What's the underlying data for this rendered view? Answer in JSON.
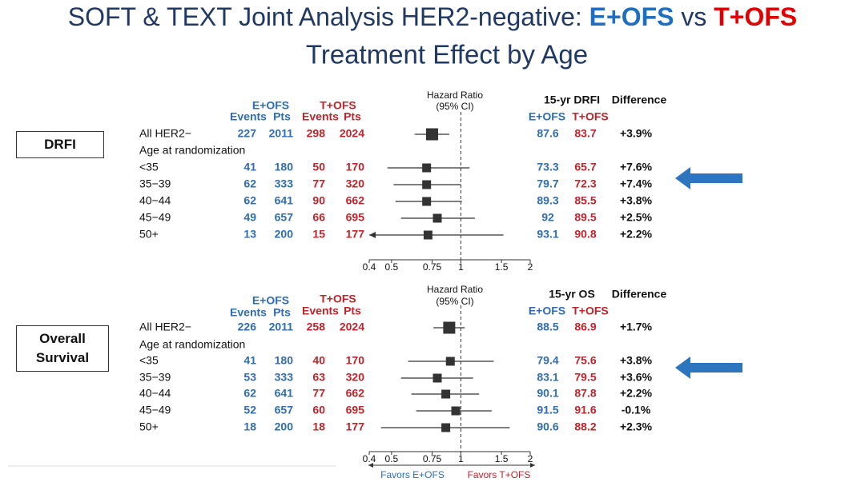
{
  "title_parts": [
    "SOFT & TEXT Joint Analysis HER2-negative: ",
    "E+OFS",
    " vs ",
    "T+OFS"
  ],
  "subtitle": "Treatment Effect by Age",
  "chart_data": [
    {
      "type": "forest",
      "panel_label": "DRFI",
      "groups": [
        "E+OFS",
        "T+OFS"
      ],
      "col_headers": [
        "Events",
        "Pts",
        "Events",
        "Pts"
      ],
      "hr_header": [
        "Hazard Ratio",
        "(95% CI)"
      ],
      "outcome_header": "15-yr DRFI",
      "diff_header": "Difference",
      "outcome_cols": [
        "E+OFS",
        "T+OFS"
      ],
      "subheading": "Age at randomization",
      "rows": [
        {
          "label": "All HER2−",
          "e_events": 227,
          "e_pts": 2011,
          "t_events": 298,
          "t_pts": 2024,
          "hr": 0.75,
          "ci_low": 0.63,
          "ci_high": 0.89,
          "e_rate": 87.6,
          "t_rate": 83.7,
          "difference": "+3.9%"
        },
        {
          "label": "<35",
          "e_events": 41,
          "e_pts": 180,
          "t_events": 50,
          "t_pts": 170,
          "hr": 0.71,
          "ci_low": 0.48,
          "ci_high": 1.09,
          "e_rate": 73.3,
          "t_rate": 65.7,
          "difference": "+7.6%"
        },
        {
          "label": "35−39",
          "e_events": 62,
          "e_pts": 333,
          "t_events": 77,
          "t_pts": 320,
          "hr": 0.71,
          "ci_low": 0.51,
          "ci_high": 1.0,
          "e_rate": 79.7,
          "t_rate": 72.3,
          "difference": "+7.4%"
        },
        {
          "label": "40−44",
          "e_events": 62,
          "e_pts": 641,
          "t_events": 90,
          "t_pts": 662,
          "hr": 0.71,
          "ci_low": 0.52,
          "ci_high": 1.01,
          "e_rate": 89.3,
          "t_rate": 85.5,
          "difference": "+3.8%"
        },
        {
          "label": "45−49",
          "e_events": 49,
          "e_pts": 657,
          "t_events": 66,
          "t_pts": 695,
          "hr": 0.79,
          "ci_low": 0.55,
          "ci_high": 1.15,
          "e_rate": 92.0,
          "t_rate": 89.5,
          "difference": "+2.5%"
        },
        {
          "label": "50+",
          "e_events": 13,
          "e_pts": 200,
          "t_events": 15,
          "t_pts": 177,
          "hr": 0.72,
          "ci_low": 0.38,
          "ci_high": 1.53,
          "e_rate": 93.1,
          "t_rate": 90.8,
          "difference": "+2.2%"
        }
      ],
      "xlim": [
        0.4,
        2
      ],
      "xticks": [
        0.4,
        0.5,
        0.75,
        1,
        1.5,
        2
      ],
      "log_x": true,
      "reference_line": 1,
      "color": "#333333"
    },
    {
      "type": "forest",
      "panel_label": "Overall Survival",
      "groups": [
        "E+OFS",
        "T+OFS"
      ],
      "col_headers": [
        "Events",
        "Pts",
        "Events",
        "Pts"
      ],
      "hr_header": [
        "Hazard Ratio",
        "(95% CI)"
      ],
      "outcome_header": "15-yr OS",
      "diff_header": "Difference",
      "outcome_cols": [
        "E+OFS",
        "T+OFS"
      ],
      "subheading": "Age at randomization",
      "rows": [
        {
          "label": "All HER2−",
          "e_events": 226,
          "e_pts": 2011,
          "t_events": 258,
          "t_pts": 2024,
          "hr": 0.89,
          "ci_low": 0.76,
          "ci_high": 1.04,
          "e_rate": 88.5,
          "t_rate": 86.9,
          "difference": "+1.7%"
        },
        {
          "label": "<35",
          "e_events": 41,
          "e_pts": 180,
          "t_events": 40,
          "t_pts": 170,
          "hr": 0.9,
          "ci_low": 0.59,
          "ci_high": 1.39,
          "e_rate": 79.4,
          "t_rate": 75.6,
          "difference": "+3.8%"
        },
        {
          "label": "35−39",
          "e_events": 53,
          "e_pts": 333,
          "t_events": 63,
          "t_pts": 320,
          "hr": 0.79,
          "ci_low": 0.55,
          "ci_high": 1.13,
          "e_rate": 83.1,
          "t_rate": 79.5,
          "difference": "+3.6%"
        },
        {
          "label": "40−44",
          "e_events": 62,
          "e_pts": 641,
          "t_events": 77,
          "t_pts": 662,
          "hr": 0.86,
          "ci_low": 0.61,
          "ci_high": 1.2,
          "e_rate": 90.1,
          "t_rate": 87.8,
          "difference": "+2.2%"
        },
        {
          "label": "45−49",
          "e_events": 52,
          "e_pts": 657,
          "t_events": 60,
          "t_pts": 695,
          "hr": 0.95,
          "ci_low": 0.64,
          "ci_high": 1.36,
          "e_rate": 91.5,
          "t_rate": 91.6,
          "difference": "-0.1%"
        },
        {
          "label": "50+",
          "e_events": 18,
          "e_pts": 200,
          "t_events": 18,
          "t_pts": 177,
          "hr": 0.86,
          "ci_low": 0.45,
          "ci_high": 1.63,
          "e_rate": 90.6,
          "t_rate": 88.2,
          "difference": "+2.3%"
        }
      ],
      "xlim": [
        0.4,
        2
      ],
      "xticks": [
        0.4,
        0.5,
        0.75,
        1,
        1.5,
        2
      ],
      "log_x": true,
      "reference_line": 1,
      "color": "#333333",
      "favors": [
        "Favors E+OFS",
        "Favors T+OFS"
      ]
    }
  ]
}
